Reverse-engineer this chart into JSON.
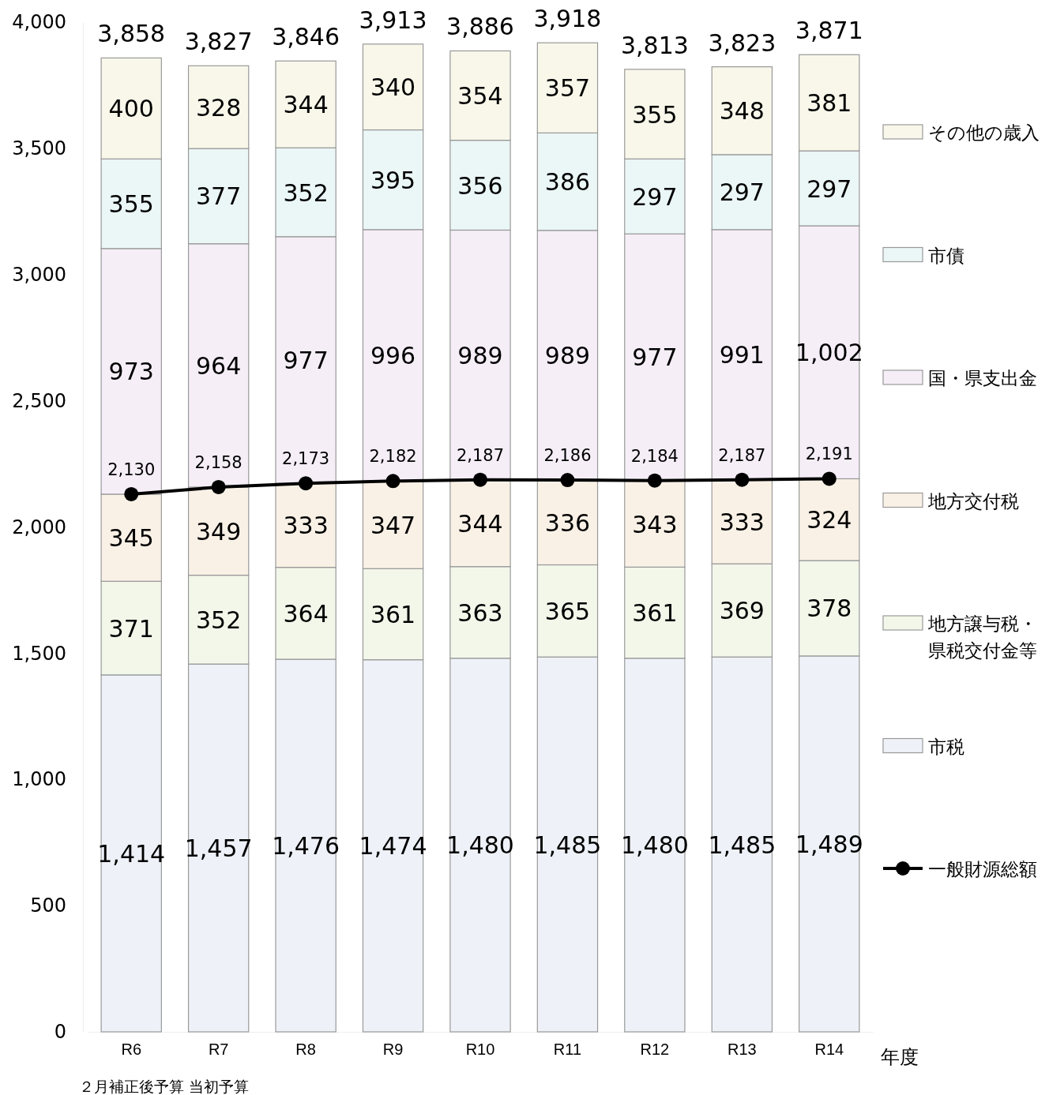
{
  "chart_data": {
    "type": "bar",
    "stacked": true,
    "categories": [
      "R6",
      "R7",
      "R8",
      "R9",
      "R10",
      "R11",
      "R12",
      "R13",
      "R14"
    ],
    "xlabel": "年度",
    "ylim": [
      0,
      4000
    ],
    "yticks": [
      0,
      500,
      {
        "value": 1000,
        "label": "1,000"
      },
      {
        "value": 1500,
        "label": "1,500"
      },
      {
        "value": 2000,
        "label": "2,000"
      },
      {
        "value": 2500,
        "label": "2,500"
      },
      {
        "value": 3000,
        "label": "3,000"
      },
      {
        "value": 3500,
        "label": "3,500"
      },
      {
        "value": 4000,
        "label": "4,000"
      }
    ],
    "grid": false,
    "legend": "right",
    "marker": "circle",
    "series": [
      {
        "name": "市税",
        "color": "#eef2f8",
        "values": [
          1414,
          1457,
          1476,
          1474,
          1480,
          1485,
          1480,
          1485,
          1489
        ],
        "value_labels": [
          "1,414",
          "1,457",
          "1,476",
          "1,474",
          "1,480",
          "1,485",
          "1,480",
          "1,485",
          "1,489"
        ]
      },
      {
        "name": "地方譲与税・県税交付金等",
        "color": "#f2f7ea",
        "values": [
          371,
          352,
          364,
          361,
          363,
          365,
          361,
          369,
          378
        ],
        "value_labels": [
          "371",
          "352",
          "364",
          "361",
          "363",
          "365",
          "361",
          "369",
          "378"
        ]
      },
      {
        "name": "地方交付税",
        "color": "#faf1e6",
        "values": [
          345,
          349,
          333,
          347,
          344,
          336,
          343,
          333,
          324
        ],
        "value_labels": [
          "345",
          "349",
          "333",
          "347",
          "344",
          "336",
          "343",
          "333",
          "324"
        ]
      },
      {
        "name": "国・県支出金",
        "color": "#f5eef7",
        "values": [
          973,
          964,
          977,
          996,
          989,
          989,
          977,
          991,
          1002
        ],
        "value_labels": [
          "973",
          "964",
          "977",
          "996",
          "989",
          "989",
          "977",
          "991",
          "1,002"
        ]
      },
      {
        "name": "市債",
        "color": "#ebf6f6",
        "values": [
          355,
          377,
          352,
          395,
          356,
          386,
          297,
          297,
          297
        ],
        "value_labels": [
          "355",
          "377",
          "352",
          "395",
          "356",
          "386",
          "297",
          "297",
          "297"
        ]
      },
      {
        "name": "その他の歳入",
        "color": "#f8f7ea",
        "values": [
          400,
          328,
          344,
          340,
          354,
          357,
          355,
          348,
          381
        ],
        "value_labels": [
          "400",
          "328",
          "344",
          "340",
          "354",
          "357",
          "355",
          "348",
          "381"
        ]
      },
      {
        "name": "一般財源総額",
        "type": "line",
        "color": "#000000",
        "values": [
          2130,
          2158,
          2173,
          2182,
          2187,
          2186,
          2184,
          2187,
          2191
        ],
        "value_labels": [
          "2,130",
          "2,158",
          "2,173",
          "2,182",
          "2,187",
          "2,186",
          "2,184",
          "2,187",
          "2,191"
        ]
      }
    ],
    "totals": [
      "3,858",
      "3,827",
      "3,846",
      "3,913",
      "3,886",
      "3,918",
      "3,813",
      "3,823",
      "3,871"
    ],
    "annotations": [
      "２月補正後予算",
      "当初予算"
    ]
  }
}
